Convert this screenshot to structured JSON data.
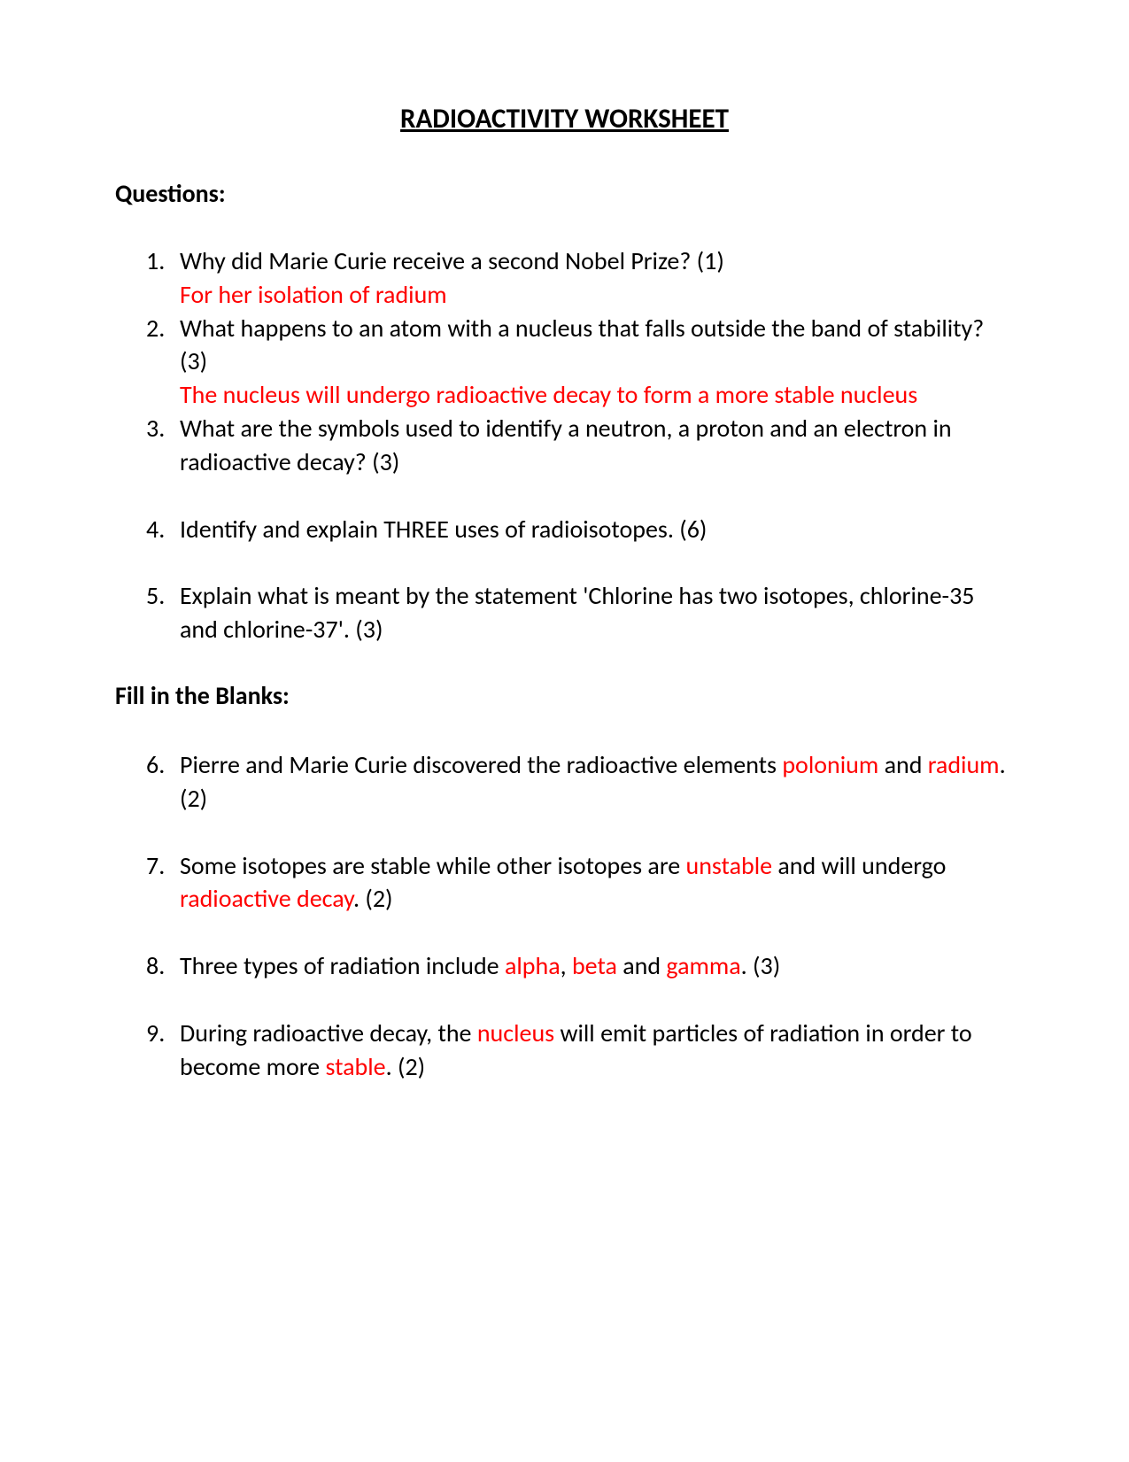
{
  "title": "RADIOACTIVITY WORKSHEET",
  "section1_heading": "Questions:",
  "section2_heading": "Fill in the Blanks:",
  "colors": {
    "text": "#000000",
    "answer": "#ff0000",
    "background": "#ffffff"
  },
  "typography": {
    "title_fontsize": 31,
    "heading_fontsize": 28,
    "body_fontsize": 28,
    "font_family": "Calibri"
  },
  "q1": {
    "text": "Why did Marie Curie receive a second Nobel Prize? (1)",
    "answer": "For her isolation of radium"
  },
  "q2": {
    "text": "What happens to an atom with a nucleus that falls outside the band of stability? (3)",
    "answer": "The nucleus will undergo radioactive decay to form a more stable nucleus"
  },
  "q3": {
    "text": "What are the symbols used to identify a neutron, a proton and an electron in radioactive decay? (3)"
  },
  "q4": {
    "text": "Identify and explain THREE uses of radioisotopes. (6)"
  },
  "q5": {
    "text": "Explain what is meant by the statement 'Chlorine has two isotopes, chlorine-35 and chlorine-37'.  (3)"
  },
  "q6": {
    "p1": "Pierre and Marie Curie discovered the radioactive elements ",
    "a1": "polonium",
    "p2": " and ",
    "a2": "radium",
    "p3": ". (2)"
  },
  "q7": {
    "p1": "Some isotopes are stable while other isotopes are ",
    "a1": "unstable",
    "p2": " and will undergo ",
    "a2": "radioactive decay",
    "p3": ". (2)"
  },
  "q8": {
    "p1": "Three types of radiation include ",
    "a1": "alpha",
    "p2": ", ",
    "a2": "beta",
    "p3": " and ",
    "a3": "gamma",
    "p4": ". (3)"
  },
  "q9": {
    "p1": "During radioactive decay, the ",
    "a1": "nucleus",
    "p2": " will emit particles of radiation in order to become more ",
    "a2": "stable",
    "p3": ". (2)"
  }
}
